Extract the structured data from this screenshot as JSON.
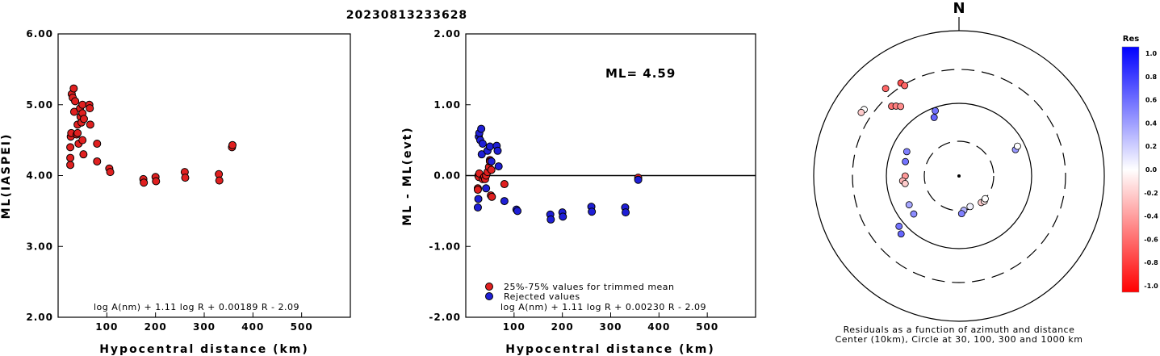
{
  "title": "20230813233628",
  "colors": {
    "retained": "#e02020",
    "rejected": "#1f1fd6",
    "residual_positive": "#0000ff",
    "residual_negative": "#ff0000"
  },
  "chart_data": [
    {
      "type": "scatter",
      "panel": "ml-vs-distance",
      "xlabel": "Hypocentral distance (km)",
      "ylabel": "ML(IASPEI)",
      "xlim": [
        0,
        600
      ],
      "ylim": [
        2.0,
        6.0
      ],
      "x_ticks": [
        "100",
        "200",
        "300",
        "400",
        "500"
      ],
      "y_ticks": [
        "2.00",
        "3.00",
        "4.00",
        "5.00",
        "6.00"
      ],
      "formula": "log A(nm) + 1.11 log R + 0.00189 R - 2.09",
      "series": [
        {
          "values": [
            [
              25,
              4.15
            ],
            [
              25,
              4.25
            ],
            [
              25,
              4.4
            ],
            [
              26,
              4.55
            ],
            [
              27,
              4.6
            ],
            [
              28,
              5.15
            ],
            [
              30,
              5.1
            ],
            [
              32,
              5.23
            ],
            [
              33,
              4.9
            ],
            [
              35,
              5.05
            ],
            [
              38,
              4.58
            ],
            [
              40,
              4.6
            ],
            [
              40,
              4.72
            ],
            [
              42,
              4.45
            ],
            [
              45,
              4.95
            ],
            [
              46,
              4.83
            ],
            [
              48,
              4.75
            ],
            [
              50,
              5.0
            ],
            [
              50,
              4.88
            ],
            [
              50,
              4.5
            ],
            [
              52,
              4.3
            ],
            [
              53,
              4.8
            ],
            [
              64,
              5.0
            ],
            [
              65,
              4.95
            ],
            [
              66,
              4.72
            ],
            [
              80,
              4.45
            ],
            [
              80,
              4.2
            ],
            [
              105,
              4.1
            ],
            [
              107,
              4.05
            ],
            [
              175,
              3.95
            ],
            [
              176,
              3.9
            ],
            [
              200,
              3.98
            ],
            [
              201,
              3.92
            ],
            [
              260,
              4.05
            ],
            [
              261,
              3.97
            ],
            [
              330,
              4.02
            ],
            [
              331,
              3.93
            ],
            [
              357,
              4.4
            ],
            [
              358,
              4.43
            ]
          ]
        }
      ]
    },
    {
      "type": "scatter",
      "panel": "residual-vs-distance",
      "xlabel": "Hypocentral distance (km)",
      "ylabel": "ML - ML(evt)",
      "xlim": [
        0,
        600
      ],
      "ylim": [
        -2.0,
        2.0
      ],
      "x_ticks": [
        "100",
        "200",
        "300",
        "400",
        "500"
      ],
      "y_ticks": [
        "-2.00",
        "-1.00",
        "0.00",
        "1.00",
        "2.00"
      ],
      "annotation": "ML= 4.59",
      "formula": "log A(nm) + 1.11 log R + 0.00230 R - 2.09",
      "series": [
        {
          "name": "25%-75% values for trimmed mean",
          "color": "#e02020",
          "values": [
            [
              25,
              -0.18
            ],
            [
              25,
              -0.2
            ],
            [
              26,
              0.0
            ],
            [
              27,
              -0.02
            ],
            [
              28,
              0.03
            ],
            [
              35,
              -0.05
            ],
            [
              38,
              -0.02
            ],
            [
              40,
              -0.05
            ],
            [
              42,
              0.0
            ],
            [
              45,
              0.05
            ],
            [
              48,
              0.12
            ],
            [
              50,
              0.22
            ],
            [
              50,
              0.2
            ],
            [
              52,
              -0.28
            ],
            [
              53,
              0.08
            ],
            [
              54,
              -0.3
            ],
            [
              80,
              -0.12
            ],
            [
              357,
              -0.03
            ]
          ]
        },
        {
          "name": "Rejected values",
          "color": "#1f1fd6",
          "values": [
            [
              25,
              -0.45
            ],
            [
              26,
              -0.33
            ],
            [
              27,
              0.55
            ],
            [
              28,
              0.6
            ],
            [
              30,
              0.5
            ],
            [
              32,
              0.66
            ],
            [
              33,
              0.3
            ],
            [
              35,
              0.45
            ],
            [
              42,
              -0.18
            ],
            [
              45,
              0.35
            ],
            [
              50,
              0.41
            ],
            [
              53,
              0.2
            ],
            [
              64,
              0.42
            ],
            [
              66,
              0.35
            ],
            [
              68,
              0.13
            ],
            [
              80,
              -0.36
            ],
            [
              105,
              -0.48
            ],
            [
              107,
              -0.5
            ],
            [
              175,
              -0.55
            ],
            [
              176,
              -0.62
            ],
            [
              200,
              -0.52
            ],
            [
              201,
              -0.58
            ],
            [
              260,
              -0.44
            ],
            [
              261,
              -0.51
            ],
            [
              330,
              -0.45
            ],
            [
              331,
              -0.52
            ],
            [
              357,
              -0.06
            ]
          ]
        }
      ]
    },
    {
      "type": "scatter",
      "panel": "residual-azimuth-polar",
      "north_label": "N",
      "caption_line1": "Residuals as a function of azimuth and distance",
      "caption_line2": "Center (10km), Circle at 30, 100, 300 and 1000 km",
      "ring_km": [
        30,
        100,
        300,
        1000
      ],
      "colorbar_title": "Res",
      "colorbar_ticks": [
        "1.0",
        "0.8",
        "0.6",
        "0.4",
        "0.2",
        "0.0",
        "-0.2",
        "-0.4",
        "-0.6",
        "-0.8",
        "-1.0"
      ],
      "stations": [
        {
          "az": 305,
          "dist": 400,
          "res": 0.0
        },
        {
          "az": 303,
          "dist": 410,
          "res": -0.2
        },
        {
          "az": 320,
          "dist": 380,
          "res": -0.6
        },
        {
          "az": 328,
          "dist": 330,
          "res": -0.7
        },
        {
          "az": 329,
          "dist": 290,
          "res": -0.6
        },
        {
          "az": 316,
          "dist": 220,
          "res": -0.55
        },
        {
          "az": 318,
          "dist": 200,
          "res": -0.5
        },
        {
          "az": 320,
          "dist": 180,
          "res": -0.45
        },
        {
          "az": 340,
          "dist": 90,
          "res": 0.55
        },
        {
          "az": 337,
          "dist": 75,
          "res": 0.6
        },
        {
          "az": 295,
          "dist": 62,
          "res": 0.5
        },
        {
          "az": 285,
          "dist": 58,
          "res": 0.55
        },
        {
          "az": 270,
          "dist": 55,
          "res": -0.4
        },
        {
          "az": 265,
          "dist": 60,
          "res": -0.3
        },
        {
          "az": 262,
          "dist": 56,
          "res": -0.2
        },
        {
          "az": 240,
          "dist": 62,
          "res": 0.35
        },
        {
          "az": 230,
          "dist": 65,
          "res": 0.45
        },
        {
          "az": 230,
          "dist": 120,
          "res": 0.55
        },
        {
          "az": 225,
          "dist": 135,
          "res": 0.6
        },
        {
          "az": 65,
          "dist": 72,
          "res": 0.4
        },
        {
          "az": 63,
          "dist": 80,
          "res": 0.0
        },
        {
          "az": 172,
          "dist": 30,
          "res": 0.3
        },
        {
          "az": 160,
          "dist": 28,
          "res": 0.05
        },
        {
          "az": 176,
          "dist": 33,
          "res": 0.5
        },
        {
          "az": 140,
          "dist": 30,
          "res": -0.2
        },
        {
          "az": 135,
          "dist": 31,
          "res": -0.1
        },
        {
          "az": 131,
          "dist": 30,
          "res": 0.0
        }
      ]
    }
  ]
}
